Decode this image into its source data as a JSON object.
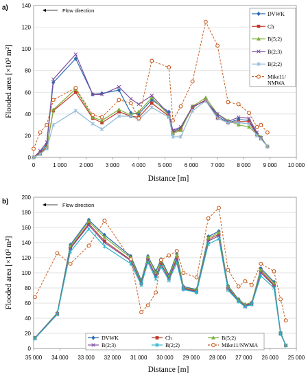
{
  "chart_data": [
    {
      "panel": "a)",
      "type": "line",
      "ylabel": "Flooded area [×10³ m²]",
      "xlabel": "Distance [m]",
      "annotation": "Flow direction",
      "xlim": [
        0,
        10000
      ],
      "ylim": [
        0,
        140
      ],
      "xticks": [
        0,
        1000,
        2000,
        3000,
        4000,
        5000,
        6000,
        7000,
        8000,
        9000,
        10000
      ],
      "xtick_labels": [
        "0",
        "1 000",
        "2 000",
        "3 000",
        "4 000",
        "5 000",
        "6 000",
        "7 000",
        "8 000",
        "9 000",
        "10 000"
      ],
      "yticks": [
        0,
        20,
        40,
        60,
        80,
        100,
        120,
        140
      ],
      "legend_position": "top-right",
      "series": [
        {
          "name": "DVWK",
          "color": "#2a6db0",
          "marker": "diamond",
          "x": [
            0,
            250,
            500,
            750,
            1600,
            2250,
            2600,
            3250,
            3700,
            4000,
            4500,
            5150,
            5300,
            5600,
            6050,
            6550,
            7000,
            7400,
            7800,
            8200,
            8500,
            8650,
            8900
          ],
          "y": [
            0,
            5,
            12,
            69,
            91,
            58,
            59,
            62,
            41,
            40,
            53,
            42,
            24,
            27,
            46,
            53,
            38,
            32,
            35,
            34,
            22,
            18,
            10
          ]
        },
        {
          "name": "Ch",
          "color": "#c0392b",
          "marker": "square",
          "x": [
            0,
            250,
            500,
            750,
            1600,
            2250,
            2600,
            3250,
            3700,
            4000,
            4500,
            5150,
            5300,
            5600,
            6050,
            6550,
            7000,
            7400,
            7800,
            8200,
            8500,
            8650,
            8900
          ],
          "y": [
            0,
            4,
            10,
            43,
            60,
            36,
            32,
            42,
            38,
            37,
            50,
            38,
            23,
            26,
            46,
            53,
            36,
            32,
            33,
            33,
            21,
            18,
            10
          ]
        },
        {
          "name": "B(5;2)",
          "color": "#7dad3a",
          "marker": "triangle",
          "x": [
            0,
            250,
            500,
            750,
            1600,
            2250,
            2600,
            3250,
            3700,
            4000,
            4500,
            5150,
            5300,
            5600,
            6050,
            6550,
            7000,
            7400,
            7800,
            8200,
            8500,
            8650,
            8900
          ],
          "y": [
            0,
            3,
            9,
            44,
            63,
            37,
            34,
            44,
            39,
            42,
            55,
            39,
            22,
            25,
            47,
            55,
            40,
            34,
            30,
            28,
            21,
            19,
            10
          ]
        },
        {
          "name": "B(2;3)",
          "color": "#7e4fa0",
          "marker": "cross",
          "x": [
            0,
            250,
            500,
            750,
            1600,
            2250,
            2600,
            3250,
            3700,
            4000,
            4500,
            5150,
            5300,
            5600,
            6050,
            6550,
            7000,
            7400,
            7800,
            8200,
            8500,
            8650,
            8900
          ],
          "y": [
            0,
            6,
            14,
            72,
            95,
            58,
            58,
            65,
            54,
            49,
            57,
            40,
            25,
            28,
            47,
            52,
            40,
            33,
            37,
            36,
            23,
            18,
            10
          ]
        },
        {
          "name": "B(2;2)",
          "color": "#8fb8d6",
          "marker": "star",
          "x": [
            0,
            250,
            500,
            750,
            1600,
            2250,
            2600,
            3250,
            3700,
            4000,
            4500,
            5150,
            5300,
            5600,
            6050,
            6550,
            7000,
            7400,
            7800,
            8200,
            8500,
            8650,
            8900
          ],
          "y": [
            0,
            3,
            8,
            30,
            43,
            31,
            26,
            38,
            38,
            35,
            46,
            37,
            19,
            19,
            43,
            52,
            36,
            32,
            32,
            31,
            20,
            17,
            10
          ]
        },
        {
          "name": "Mike11/\nNMWA",
          "color": "#c85a1c",
          "marker": "circle",
          "dashed": true,
          "x": [
            0,
            250,
            500,
            750,
            1600,
            2250,
            2600,
            3250,
            3700,
            4000,
            4500,
            5150,
            5300,
            5600,
            6050,
            6550,
            7000,
            7400,
            7800,
            8200,
            8500,
            8650,
            8900
          ],
          "y": [
            8,
            23,
            30,
            53,
            64,
            39,
            37,
            53,
            50,
            36,
            89,
            83,
            34,
            47,
            70,
            125,
            103,
            51,
            49,
            41,
            28,
            30,
            23
          ]
        }
      ]
    },
    {
      "panel": "b)",
      "type": "line",
      "ylabel": "Flooded area [×10³ m²]",
      "xlabel": "Distance [m]",
      "annotation": "Flow direction",
      "xlim": [
        35000,
        25000
      ],
      "ylim": [
        0,
        200
      ],
      "xticks": [
        35000,
        34000,
        33000,
        32000,
        31000,
        30000,
        29000,
        28000,
        27000,
        26000,
        25000
      ],
      "xtick_labels": [
        "35 000",
        "34 000",
        "33 000",
        "32 000",
        "31 000",
        "30 000",
        "29 000",
        "28 000",
        "27 000",
        "26 000",
        "25 000"
      ],
      "yticks": [
        0,
        20,
        40,
        60,
        80,
        100,
        120,
        140,
        160,
        180,
        200
      ],
      "legend_position": "bottom",
      "series": [
        {
          "name": "DVWK",
          "color": "#2a6db0",
          "marker": "diamond",
          "x": [
            34950,
            34100,
            33600,
            32900,
            32300,
            31300,
            30900,
            30650,
            30350,
            30150,
            29850,
            29550,
            29300,
            28800,
            28350,
            27950,
            27600,
            27200,
            26950,
            26700,
            26350,
            25850,
            25600,
            25400
          ],
          "y": [
            14,
            47,
            137,
            170,
            150,
            122,
            90,
            122,
            102,
            118,
            97,
            125,
            82,
            78,
            148,
            155,
            83,
            65,
            58,
            60,
            106,
            88,
            21,
            4
          ]
        },
        {
          "name": "Ch",
          "color": "#c0392b",
          "marker": "square",
          "x": [
            34950,
            34100,
            33600,
            32900,
            32300,
            31300,
            30900,
            30650,
            30350,
            30150,
            29850,
            29550,
            29300,
            28800,
            28350,
            27950,
            27600,
            27200,
            26950,
            26700,
            26350,
            25850,
            25600,
            25400
          ],
          "y": [
            14,
            46,
            133,
            165,
            142,
            117,
            86,
            118,
            96,
            112,
            93,
            119,
            80,
            76,
            144,
            151,
            80,
            64,
            57,
            60,
            102,
            84,
            20,
            4
          ]
        },
        {
          "name": "B(5;2)",
          "color": "#7dad3a",
          "marker": "triangle",
          "x": [
            34950,
            34100,
            33600,
            32900,
            32300,
            31300,
            30900,
            30650,
            30350,
            30150,
            29850,
            29550,
            29300,
            28800,
            28350,
            27950,
            27600,
            27200,
            26950,
            26700,
            26350,
            25850,
            25600,
            25400
          ],
          "y": [
            14,
            47,
            135,
            168,
            147,
            120,
            88,
            121,
            100,
            116,
            95,
            123,
            81,
            77,
            146,
            153,
            82,
            64,
            58,
            61,
            104,
            86,
            21,
            4
          ]
        },
        {
          "name": "B(2;3)",
          "color": "#7e4fa0",
          "marker": "cross",
          "x": [
            34950,
            34100,
            33600,
            32900,
            32300,
            31300,
            30900,
            30650,
            30350,
            30150,
            29850,
            29550,
            29300,
            28800,
            28350,
            27950,
            27600,
            27200,
            26950,
            26700,
            26350,
            25850,
            25600,
            25400
          ],
          "y": [
            14,
            46,
            132,
            163,
            140,
            116,
            86,
            117,
            95,
            111,
            92,
            117,
            79,
            75,
            142,
            149,
            79,
            63,
            56,
            59,
            100,
            83,
            20,
            4
          ]
        },
        {
          "name": "B(2;2)",
          "color": "#2bb3c7",
          "marker": "star",
          "x": [
            34950,
            34100,
            33600,
            32900,
            32300,
            31300,
            30900,
            30650,
            30350,
            30150,
            29850,
            29550,
            29300,
            28800,
            28350,
            27950,
            27600,
            27200,
            26950,
            26700,
            26350,
            25850,
            25600,
            25400
          ],
          "y": [
            13,
            45,
            128,
            158,
            135,
            112,
            84,
            114,
            92,
            108,
            90,
            113,
            78,
            74,
            138,
            145,
            77,
            62,
            55,
            58,
            96,
            80,
            19,
            4
          ]
        },
        {
          "name": "Mike11/NWMA",
          "color": "#c85a1c",
          "marker": "circle",
          "dashed": true,
          "x": [
            34950,
            34100,
            33600,
            32900,
            32300,
            31300,
            30900,
            30650,
            30350,
            30150,
            29850,
            29550,
            29300,
            28800,
            28350,
            27950,
            27600,
            27200,
            26950,
            26700,
            26350,
            25850,
            25600,
            25400
          ],
          "y": [
            68,
            126,
            112,
            136,
            169,
            118,
            48,
            57,
            74,
            117,
            123,
            129,
            100,
            94,
            172,
            186,
            104,
            82,
            89,
            84,
            112,
            102,
            65,
            37
          ]
        }
      ]
    }
  ]
}
